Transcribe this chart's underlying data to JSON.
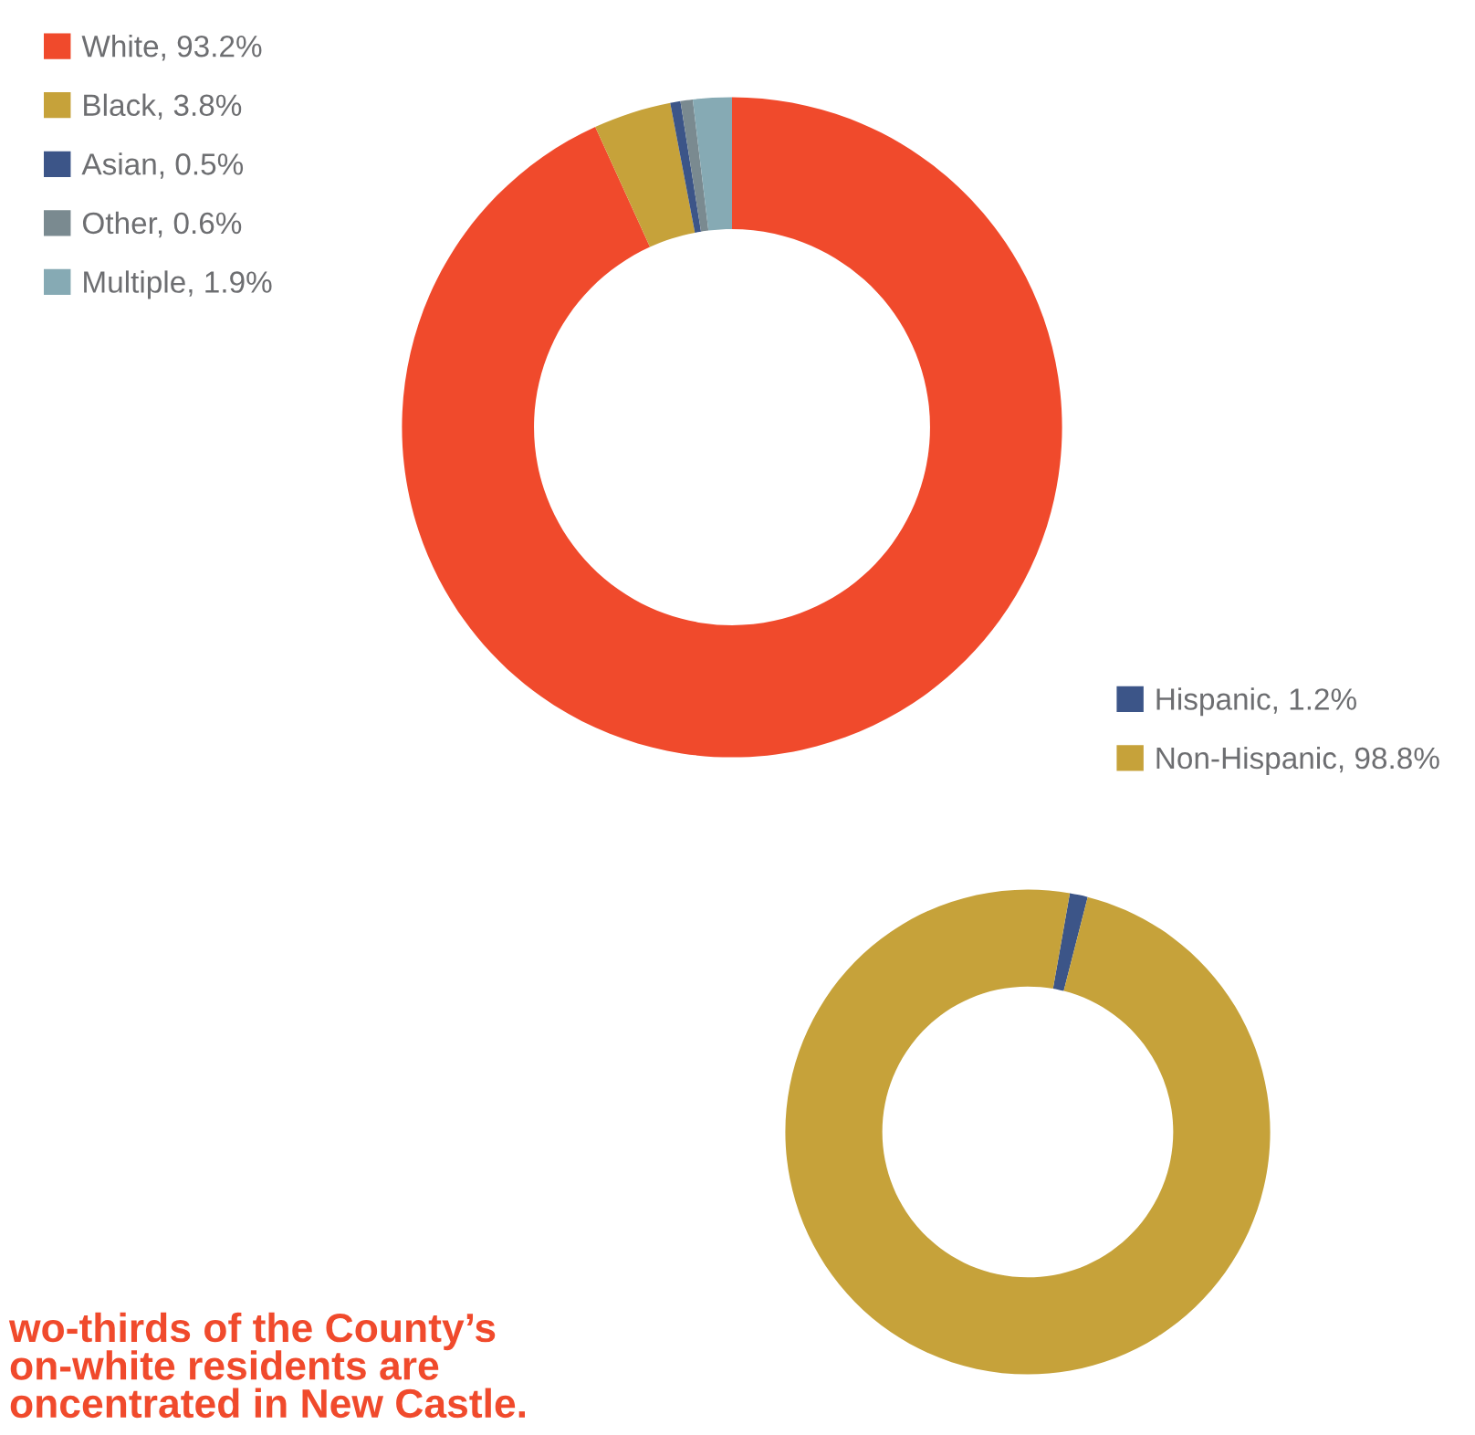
{
  "chart_data": [
    {
      "type": "donut",
      "categories": [
        "White, 93.2%",
        "Black, 3.8%",
        "Asian, 0.5%",
        "Other, 0.6%",
        "Multiple, 1.9%"
      ],
      "values": [
        93.2,
        3.8,
        0.5,
        0.6,
        1.9
      ],
      "colors": [
        "#f04a2c",
        "#c6a23a",
        "#3c5588",
        "#7a8a90",
        "#86aab4"
      ],
      "legend": "left"
    },
    {
      "type": "donut",
      "categories": [
        "Hispanic, 1.2%",
        "Non-Hispanic, 98.8%"
      ],
      "values": [
        1.2,
        98.8
      ],
      "colors": [
        "#3c5588",
        "#c6a23a"
      ],
      "legend": "top right",
      "annotations": [
        "wo-thirds of the County’s\non-white residents are\noncentrated in New Castle."
      ]
    }
  ]
}
